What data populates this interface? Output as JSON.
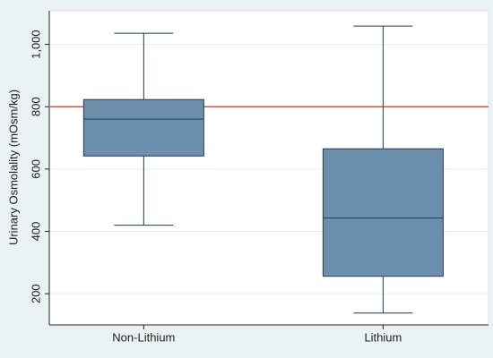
{
  "chart_data": {
    "type": "box",
    "y_label": "Urinary Osmolality (mOsm/kg)",
    "categories": [
      "Non-Lithium",
      "Lithium"
    ],
    "boxes": [
      {
        "min": 420,
        "q1": 642,
        "median": 760,
        "q3": 823,
        "max": 1036
      },
      {
        "min": 138,
        "q1": 256,
        "median": 443,
        "q3": 665,
        "max": 1059
      }
    ],
    "color": "#6d8fae",
    "reference_line": {
      "value": 800,
      "color": "#d0302a"
    },
    "ylim": [
      100,
      1108
    ],
    "yticks": [
      200,
      400,
      600,
      800,
      {
        "value": 1000,
        "label": "1,000"
      }
    ],
    "grid": true
  }
}
